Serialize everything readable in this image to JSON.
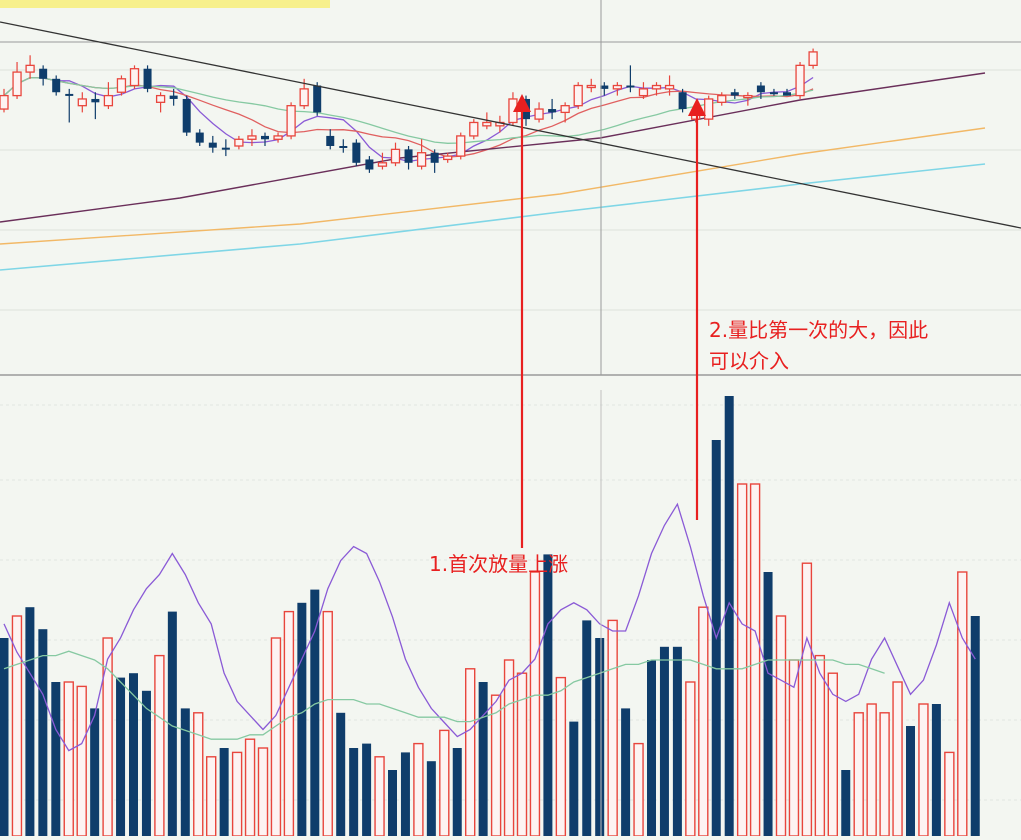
{
  "colors": {
    "background": "#f3f6f1",
    "up": "#e8453c",
    "down": "#0f3d6b",
    "ma5": "#8a5ad6",
    "ma10": "#e06060",
    "ma20": "#86c9a2",
    "ma60": "#6a2f5a",
    "ma120": "#f2b866",
    "ma250": "#7fd6e6",
    "trendline": "#333333",
    "annotation": "#e82020"
  },
  "annotations": {
    "first": "1.首次放量上涨",
    "second_line1": "2.量比第一次的大，因此",
    "second_line2": "可以介入"
  },
  "chart_data": [
    {
      "type": "candlestick",
      "title": "",
      "xlabel": "",
      "ylabel": "",
      "grid": true,
      "ylim": [
        0,
        100
      ],
      "candles": [
        {
          "o": 72,
          "c": 80,
          "h": 84,
          "l": 70,
          "up": true
        },
        {
          "o": 80,
          "c": 94,
          "h": 100,
          "l": 78,
          "up": true
        },
        {
          "o": 94,
          "c": 98,
          "h": 104,
          "l": 90,
          "up": true
        },
        {
          "o": 96,
          "c": 90,
          "h": 98,
          "l": 86,
          "up": false
        },
        {
          "o": 90,
          "c": 82,
          "h": 92,
          "l": 80,
          "up": false
        },
        {
          "o": 81,
          "c": 80,
          "h": 84,
          "l": 64,
          "up": false
        },
        {
          "o": 74,
          "c": 78,
          "h": 82,
          "l": 70,
          "up": true
        },
        {
          "o": 78,
          "c": 76,
          "h": 82,
          "l": 66,
          "up": false
        },
        {
          "o": 74,
          "c": 80,
          "h": 88,
          "l": 72,
          "up": true
        },
        {
          "o": 82,
          "c": 90,
          "h": 92,
          "l": 80,
          "up": true
        },
        {
          "o": 86,
          "c": 96,
          "h": 98,
          "l": 84,
          "up": true
        },
        {
          "o": 96,
          "c": 84,
          "h": 98,
          "l": 82,
          "up": false
        },
        {
          "o": 76,
          "c": 80,
          "h": 82,
          "l": 70,
          "up": true
        },
        {
          "o": 80,
          "c": 78,
          "h": 84,
          "l": 74,
          "up": false
        },
        {
          "o": 78,
          "c": 58,
          "h": 80,
          "l": 56,
          "up": false
        },
        {
          "o": 58,
          "c": 52,
          "h": 60,
          "l": 50,
          "up": false
        },
        {
          "o": 52,
          "c": 49,
          "h": 56,
          "l": 46,
          "up": false
        },
        {
          "o": 49,
          "c": 49,
          "h": 54,
          "l": 44,
          "up": false
        },
        {
          "o": 50,
          "c": 54,
          "h": 56,
          "l": 48,
          "up": true
        },
        {
          "o": 54,
          "c": 56,
          "h": 60,
          "l": 50,
          "up": true
        },
        {
          "o": 56,
          "c": 54,
          "h": 58,
          "l": 50,
          "up": false
        },
        {
          "o": 54,
          "c": 56,
          "h": 58,
          "l": 52,
          "up": true
        },
        {
          "o": 56,
          "c": 74,
          "h": 76,
          "l": 54,
          "up": true
        },
        {
          "o": 74,
          "c": 84,
          "h": 90,
          "l": 72,
          "up": true
        },
        {
          "o": 86,
          "c": 70,
          "h": 88,
          "l": 68,
          "up": false
        },
        {
          "o": 56,
          "c": 50,
          "h": 60,
          "l": 48,
          "up": false
        },
        {
          "o": 50,
          "c": 50,
          "h": 54,
          "l": 46,
          "up": false
        },
        {
          "o": 52,
          "c": 40,
          "h": 54,
          "l": 38,
          "up": false
        },
        {
          "o": 42,
          "c": 36,
          "h": 44,
          "l": 34,
          "up": false
        },
        {
          "o": 38,
          "c": 40,
          "h": 46,
          "l": 36,
          "up": true
        },
        {
          "o": 40,
          "c": 48,
          "h": 52,
          "l": 38,
          "up": true
        },
        {
          "o": 48,
          "c": 40,
          "h": 50,
          "l": 36,
          "up": false
        },
        {
          "o": 38,
          "c": 46,
          "h": 54,
          "l": 36,
          "up": true
        },
        {
          "o": 46,
          "c": 40,
          "h": 48,
          "l": 34,
          "up": false
        },
        {
          "o": 42,
          "c": 44,
          "h": 46,
          "l": 40,
          "up": true
        },
        {
          "o": 44,
          "c": 56,
          "h": 58,
          "l": 42,
          "up": true
        },
        {
          "o": 56,
          "c": 64,
          "h": 66,
          "l": 54,
          "up": true
        },
        {
          "o": 62,
          "c": 64,
          "h": 70,
          "l": 60,
          "up": true
        },
        {
          "o": 62,
          "c": 64,
          "h": 68,
          "l": 58,
          "up": true
        },
        {
          "o": 64,
          "c": 78,
          "h": 82,
          "l": 62,
          "up": true
        },
        {
          "o": 78,
          "c": 66,
          "h": 80,
          "l": 62,
          "up": false
        },
        {
          "o": 66,
          "c": 72,
          "h": 76,
          "l": 64,
          "up": true
        },
        {
          "o": 72,
          "c": 70,
          "h": 78,
          "l": 66,
          "up": false
        },
        {
          "o": 70,
          "c": 74,
          "h": 76,
          "l": 64,
          "up": true
        },
        {
          "o": 74,
          "c": 86,
          "h": 88,
          "l": 72,
          "up": true
        },
        {
          "o": 86,
          "c": 86,
          "h": 90,
          "l": 82,
          "up": true
        },
        {
          "o": 86,
          "c": 84,
          "h": 88,
          "l": 80,
          "up": false
        },
        {
          "o": 84,
          "c": 86,
          "h": 88,
          "l": 80,
          "up": true
        },
        {
          "o": 86,
          "c": 86,
          "h": 98,
          "l": 82,
          "up": false
        },
        {
          "o": 84,
          "c": 80,
          "h": 88,
          "l": 78,
          "up": true
        },
        {
          "o": 84,
          "c": 86,
          "h": 88,
          "l": 80,
          "up": true
        },
        {
          "o": 84,
          "c": 86,
          "h": 92,
          "l": 80,
          "up": true
        },
        {
          "o": 82,
          "c": 72,
          "h": 84,
          "l": 70,
          "up": false
        },
        {
          "o": 70,
          "c": 66,
          "h": 72,
          "l": 64,
          "up": true
        },
        {
          "o": 66,
          "c": 78,
          "h": 80,
          "l": 62,
          "up": true
        },
        {
          "o": 76,
          "c": 80,
          "h": 82,
          "l": 74,
          "up": true
        },
        {
          "o": 80,
          "c": 82,
          "h": 84,
          "l": 78,
          "up": false
        },
        {
          "o": 80,
          "c": 80,
          "h": 82,
          "l": 74,
          "up": true
        },
        {
          "o": 82,
          "c": 86,
          "h": 88,
          "l": 78,
          "up": false
        },
        {
          "o": 82,
          "c": 82,
          "h": 84,
          "l": 80,
          "up": false
        },
        {
          "o": 80,
          "c": 82,
          "h": 84,
          "l": 80,
          "up": false
        },
        {
          "o": 80,
          "c": 98,
          "h": 100,
          "l": 78,
          "up": true
        },
        {
          "o": 98,
          "c": 106,
          "h": 108,
          "l": 96,
          "up": true
        }
      ]
    },
    {
      "type": "bar",
      "title": "",
      "xlabel": "",
      "ylabel": "",
      "grid": true,
      "ylim": [
        0,
        100
      ],
      "series": [
        {
          "values": [
            45,
            50,
            52,
            47,
            35,
            35,
            34,
            29,
            45,
            36,
            37,
            33,
            41,
            51,
            29,
            28,
            18,
            20,
            19,
            22,
            20,
            45,
            51,
            53,
            56,
            51,
            28,
            20,
            21,
            18,
            15,
            19,
            21,
            17,
            24,
            20,
            38,
            35,
            32,
            40,
            37,
            60,
            64,
            36,
            26,
            49,
            45,
            49,
            29,
            21,
            40,
            43,
            43,
            35,
            52,
            90,
            100,
            80,
            80,
            60,
            50,
            40,
            62,
            41,
            37,
            15,
            28,
            30,
            28,
            35,
            25,
            30,
            30,
            19,
            60,
            50
          ]
        },
        {
          "values": [
            27,
            23,
            20,
            17,
            12,
            9,
            10,
            14,
            22,
            25,
            29,
            32,
            34,
            37,
            34,
            30,
            27,
            20,
            16,
            14,
            12,
            14,
            18,
            22,
            26,
            32,
            36,
            38,
            37,
            33,
            28,
            22,
            18,
            15,
            13,
            11,
            12,
            14,
            16,
            19,
            20,
            22,
            27,
            29,
            30,
            29,
            27,
            26,
            26,
            31,
            37,
            41,
            44,
            38,
            31,
            25,
            30,
            27,
            26,
            20,
            19,
            18,
            25,
            20,
            17,
            16,
            17,
            22,
            25,
            21,
            17,
            19,
            24,
            30,
            25,
            22
          ]
        },
        {
          "values": [
            33,
            34,
            35,
            36,
            36,
            37,
            36,
            35,
            33,
            30,
            27,
            24,
            22,
            20,
            19,
            18,
            17,
            17,
            17,
            18,
            18,
            20,
            22,
            23,
            25,
            26,
            26,
            26,
            25,
            25,
            24,
            23,
            22,
            22,
            22,
            21,
            21,
            22,
            23,
            25,
            26,
            27,
            27,
            28,
            30,
            31,
            32,
            33,
            34,
            34,
            35,
            35,
            35,
            35,
            34,
            33,
            33,
            33,
            34,
            35,
            35,
            35,
            35,
            35,
            35,
            34,
            34,
            33,
            32
          ]
        }
      ]
    }
  ]
}
